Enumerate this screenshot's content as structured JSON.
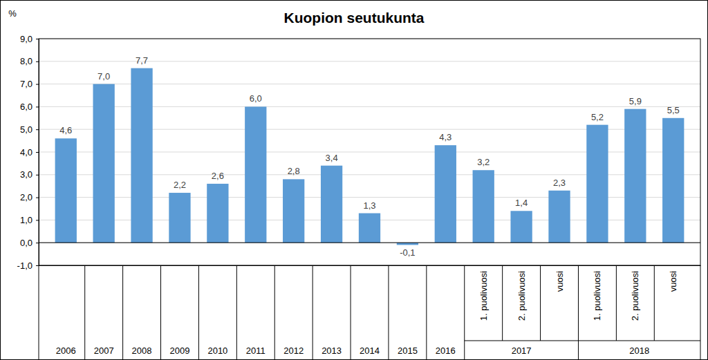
{
  "chart_data": {
    "type": "bar",
    "title": "Kuopion seutukunta",
    "y_label": "%",
    "categories": [
      "2006",
      "2007",
      "2008",
      "2009",
      "2010",
      "2011",
      "2012",
      "2013",
      "2014",
      "2015",
      "2016",
      "1. puolivuosi",
      "2. puolivuosi",
      "vuosi",
      "1. puolivuosi",
      "2. puolivuosi",
      "vuosi"
    ],
    "groups": [
      {
        "label": "2017",
        "members": [
          11,
          12,
          13
        ]
      },
      {
        "label": "2018",
        "members": [
          14,
          15,
          16
        ]
      }
    ],
    "values": [
      4.6,
      7.0,
      7.7,
      2.2,
      2.6,
      6.0,
      2.8,
      3.4,
      1.3,
      -0.1,
      4.3,
      3.2,
      1.4,
      2.3,
      5.2,
      5.9,
      5.5
    ],
    "value_labels": [
      "4,6",
      "7,0",
      "7,7",
      "2,2",
      "2,6",
      "6,0",
      "2,8",
      "3,4",
      "1,3",
      "-0,1",
      "4,3",
      "3,2",
      "1,4",
      "2,3",
      "5,2",
      "5,9",
      "5,5"
    ],
    "color": "#5b9bd5",
    "ylim": [
      -1,
      9
    ],
    "yticks": [
      {
        "value": -1,
        "label": "-1,0"
      },
      {
        "value": 0,
        "label": "0,0"
      },
      {
        "value": 1,
        "label": "1,0"
      },
      {
        "value": 2,
        "label": "2,0"
      },
      {
        "value": 3,
        "label": "3,0"
      },
      {
        "value": 4,
        "label": "4,0"
      },
      {
        "value": 5,
        "label": "5,0"
      },
      {
        "value": 6,
        "label": "6,0"
      },
      {
        "value": 7,
        "label": "7,0"
      },
      {
        "value": 8,
        "label": "8,0"
      },
      {
        "value": 9,
        "label": "9,0"
      }
    ],
    "grid": true,
    "data_labels": true
  }
}
